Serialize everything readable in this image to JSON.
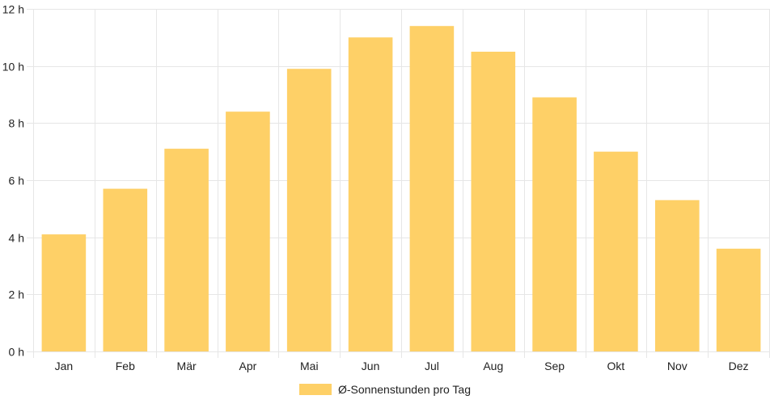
{
  "colors": {
    "bar_fill": "#FED067",
    "grid": "#e6e6e6",
    "text": "#222222"
  },
  "chart_data": {
    "type": "bar",
    "categories": [
      "Jan",
      "Feb",
      "Mär",
      "Apr",
      "Mai",
      "Jun",
      "Jul",
      "Aug",
      "Sep",
      "Okt",
      "Nov",
      "Dez"
    ],
    "series": [
      {
        "name": "Ø-Sonnenstunden pro Tag",
        "values": [
          4.1,
          5.7,
          7.1,
          8.4,
          9.9,
          11.0,
          11.4,
          10.5,
          8.9,
          7.0,
          5.3,
          3.6
        ]
      }
    ],
    "ylim": [
      0,
      12
    ],
    "yticks": [
      0,
      2,
      4,
      6,
      8,
      10,
      12
    ],
    "ytick_labels": [
      "0 h",
      "2 h",
      "4 h",
      "6 h",
      "8 h",
      "10 h",
      "12 h"
    ],
    "grid": true,
    "legend_position": "bottom"
  }
}
